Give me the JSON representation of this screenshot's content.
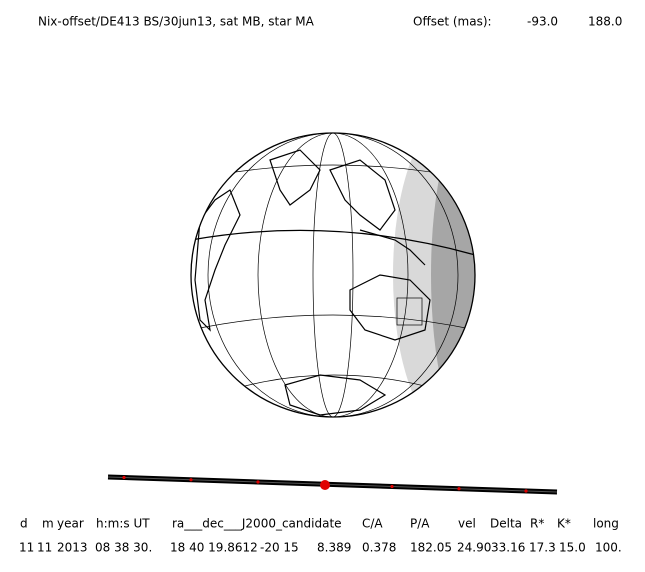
{
  "title": {
    "left": "Nix-offset/DE413 BS/30jun13, sat MB, star MA",
    "offset_label": "Offset (mas):",
    "offset_ra": "-93.0",
    "offset_dec": "188.0"
  },
  "table": {
    "headers": [
      "d",
      "m",
      "year",
      "h:m:s UT",
      "ra___dec___J2000_candidate",
      "C/A",
      "P/A",
      "vel",
      "Delta",
      "R*",
      "K*",
      "long"
    ],
    "row": [
      "11",
      "11",
      "2013",
      "08 38 30.",
      "18 40 19.8612",
      "-20 15",
      "8.389",
      "0.378",
      "182.05",
      "24.90",
      "33.16",
      "17.3",
      "15.0",
      "100."
    ]
  }
}
